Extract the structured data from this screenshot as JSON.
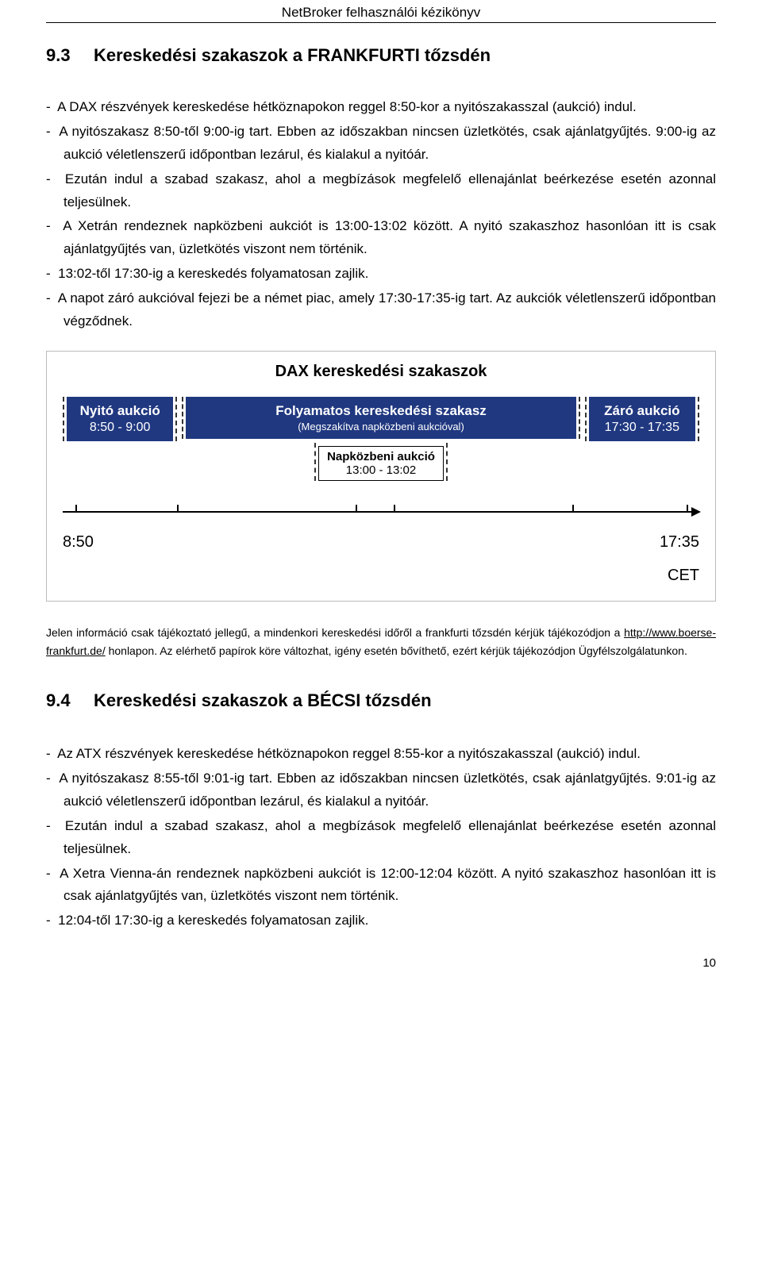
{
  "header": {
    "title": "NetBroker felhasználói kézikönyv"
  },
  "section1": {
    "num": "9.3",
    "title": "Kereskedési szakaszok a FRANKFURTI tőzsdén",
    "bullets": [
      "A DAX részvények kereskedése hétköznapokon reggel 8:50-kor a nyitószakasszal (aukció) indul.",
      "A nyitószakasz 8:50-től 9:00-ig tart. Ebben az időszakban nincsen üzletkötés, csak ajánlatgyűjtés. 9:00-ig az aukció véletlenszerű időpontban lezárul, és kialakul a nyitóár.",
      "Ezután indul a szabad szakasz, ahol a megbízások megfelelő ellenajánlat beérkezése esetén azonnal teljesülnek.",
      "A Xetrán rendeznek napközbeni aukciót is 13:00-13:02 között. A nyitó szakaszhoz hasonlóan itt is csak ajánlatgyűjtés van, üzletkötés viszont nem történik.",
      "13:02-től 17:30-ig a kereskedés folyamatosan zajlik.",
      "A napot záró aukcióval fejezi be a német piac, amely 17:30-17:35-ig tart. Az aukciók véletlenszerű időpontban végződnek."
    ]
  },
  "diagram": {
    "title": "DAX kereskedési szakaszok",
    "background": "#ffffff",
    "box_bg": "#203880",
    "box_text": "#ffffff",
    "dash_color": "#333333",
    "axis_color": "#000000",
    "open": {
      "label": "Nyitó aukció",
      "time": "8:50 - 9:00",
      "width_pct": 18
    },
    "cont": {
      "label": "Folyamatos kereskedési szakasz",
      "sub": "(Megszakítva napközbeni aukcióval)",
      "width_pct": 58
    },
    "close": {
      "label": "Záró aukció",
      "time": "17:30 - 17:35",
      "width_pct": 18
    },
    "mid": {
      "label": "Napközbeni aukció",
      "time": "13:00 - 13:02"
    },
    "axis": {
      "start_label": "8:50",
      "end_label": "17:35",
      "tz": "CET",
      "ticks_pct": [
        2,
        18,
        46,
        52,
        80,
        98
      ]
    }
  },
  "note": {
    "p1a": "Jelen információ csak tájékoztató jellegű, a mindenkori kereskedési időről a frankfurti tőzsdén kérjük tájékozódjon a ",
    "link": "http://www.boerse-frankfurt.de/",
    "p1b": " honlapon. Az elérhető papírok köre változhat, igény esetén bővíthető, ezért kérjük tájékozódjon Ügyfélszolgálatunkon."
  },
  "section2": {
    "num": "9.4",
    "title": "Kereskedési szakaszok a BÉCSI tőzsdén",
    "bullets": [
      "Az ATX részvények kereskedése hétköznapokon reggel 8:55-kor a nyitószakasszal (aukció) indul.",
      "A nyitószakasz 8:55-től 9:01-ig tart. Ebben az időszakban nincsen üzletkötés, csak ajánlatgyűjtés. 9:01-ig az aukció véletlenszerű időpontban lezárul, és kialakul a nyitóár.",
      "Ezután indul a szabad szakasz, ahol a megbízások megfelelő ellenajánlat beérkezése esetén azonnal teljesülnek.",
      "A Xetra Vienna-án rendeznek napközbeni aukciót is 12:00-12:04 között. A nyitó szakaszhoz hasonlóan itt is csak ajánlatgyűjtés van, üzletkötés viszont nem történik.",
      "12:04-től 17:30-ig a kereskedés folyamatosan zajlik."
    ]
  },
  "page_number": "10"
}
